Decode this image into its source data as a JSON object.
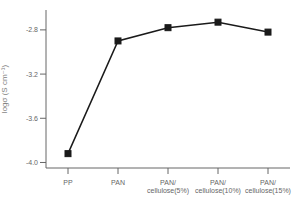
{
  "chart_data": {
    "type": "line",
    "categories": [
      "PP",
      "PAN",
      "PAN/\ncellulose(5%)",
      "PAN/\ncellulose(10%)",
      "PAN/\ncellulose(15%)"
    ],
    "values": [
      -3.92,
      -2.9,
      -2.78,
      -2.73,
      -2.82
    ],
    "ylabel": "logσ (S cm⁻¹)",
    "ylim": [
      -4.05,
      -2.62
    ],
    "yticks": [
      {
        "value": -4.0,
        "label": "-4.0"
      },
      {
        "value": -3.6,
        "label": "-3.6"
      },
      {
        "value": -3.2,
        "label": "-3.2"
      },
      {
        "value": -2.8,
        "label": "-2.8"
      }
    ],
    "color": "#1a1a1a",
    "marker": "square",
    "grid": false
  }
}
